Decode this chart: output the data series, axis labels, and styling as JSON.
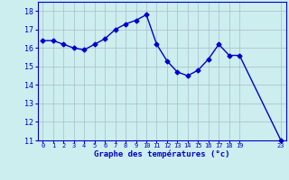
{
  "x": [
    0,
    1,
    2,
    3,
    4,
    5,
    6,
    7,
    8,
    9,
    10,
    11,
    12,
    13,
    14,
    15,
    16,
    17,
    18,
    19,
    23
  ],
  "y": [
    16.4,
    16.4,
    16.2,
    16.0,
    15.9,
    16.2,
    16.5,
    17.0,
    17.3,
    17.5,
    17.8,
    16.2,
    15.3,
    14.7,
    14.5,
    14.8,
    15.4,
    16.2,
    15.6,
    15.6,
    11.0
  ],
  "line_color": "#0000cc",
  "marker": "D",
  "marker_size": 2.5,
  "bg_color": "#cceeee",
  "grid_color": "#aabbcc",
  "xlabel": "Graphe des températures (°c)",
  "xlabel_color": "#0000cc",
  "tick_color": "#0000cc",
  "xlim": [
    -0.5,
    23.5
  ],
  "ylim": [
    11,
    18.5
  ],
  "yticks": [
    11,
    12,
    13,
    14,
    15,
    16,
    17,
    18
  ],
  "figsize": [
    3.2,
    2.0
  ],
  "dpi": 100
}
